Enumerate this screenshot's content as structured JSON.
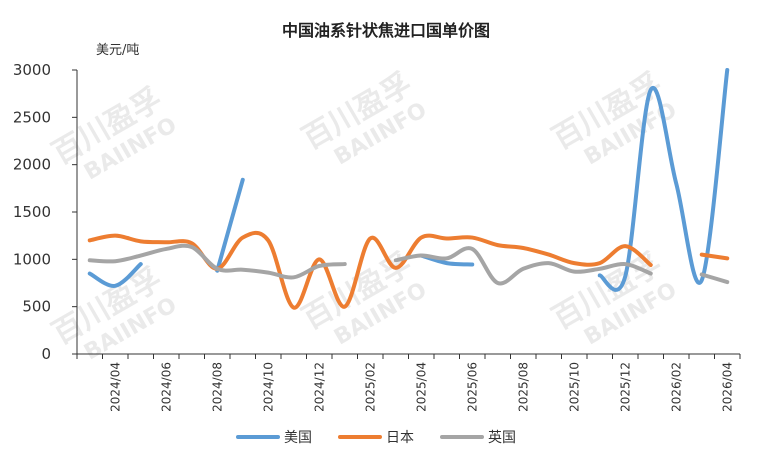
{
  "chart_data": {
    "type": "line",
    "title": "中国油系针状焦进口国单价图",
    "unit_label": "美元/吨",
    "ylim": [
      0,
      3000
    ],
    "y_ticks": [
      "0",
      "500",
      "1000",
      "1500",
      "2000",
      "2500",
      "3000"
    ],
    "x": [
      "2024/03",
      "2024/04",
      "2024/05",
      "2024/06",
      "2024/07",
      "2024/08",
      "2024/09",
      "2024/10",
      "2024/11",
      "2024/12",
      "2025/01",
      "2025/02",
      "2025/03",
      "2025/04",
      "2025/05",
      "2025/06",
      "2025/07",
      "2025/08",
      "2025/09",
      "2025/10",
      "2025/11",
      "2025/12",
      "2026/01",
      "2026/02",
      "2026/03",
      "2026/04"
    ],
    "x_tick_labels": [
      "2024/04",
      "2024/06",
      "2024/08",
      "2024/10",
      "2024/12",
      "2025/02",
      "2025/04",
      "2025/06",
      "2025/08",
      "2025/10",
      "2025/12",
      "2026/02",
      "2026/04"
    ],
    "series": [
      {
        "name": "美国",
        "color": "#5b9bd5",
        "values": [
          850,
          720,
          950,
          null,
          null,
          880,
          1840,
          null,
          null,
          null,
          null,
          null,
          null,
          1040,
          960,
          945,
          null,
          null,
          null,
          null,
          830,
          820,
          2790,
          1800,
          780,
          3000
        ]
      },
      {
        "name": "日本",
        "color": "#ed7d31",
        "values": [
          1200,
          1250,
          1190,
          1180,
          1170,
          900,
          1230,
          1200,
          490,
          1000,
          500,
          1220,
          910,
          1230,
          1220,
          1230,
          1150,
          1120,
          1050,
          960,
          960,
          1140,
          940,
          null,
          1050,
          1010
        ]
      },
      {
        "name": "英国",
        "color": "#a5a5a5",
        "values": [
          990,
          980,
          1040,
          1110,
          1130,
          900,
          890,
          860,
          810,
          930,
          950,
          null,
          990,
          1040,
          1010,
          1110,
          750,
          900,
          960,
          870,
          900,
          950,
          850,
          null,
          840,
          760
        ]
      }
    ],
    "legend": {
      "position": "bottom"
    },
    "watermark": {
      "cn": "百川盈孚",
      "en": "BAIINFO"
    }
  }
}
